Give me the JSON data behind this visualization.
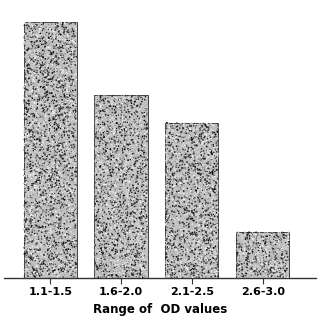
{
  "categories": [
    "1.1-1.5",
    "1.6-2.0",
    "2.1-2.5",
    "2.6-3.0"
  ],
  "values": [
    28,
    20,
    17,
    5
  ],
  "bar_color_base": "#c0c0c0",
  "xlabel": "Range of  OD values",
  "xlabel_fontsize": 8.5,
  "tick_fontsize": 8,
  "ylim": [
    0,
    30
  ],
  "bar_width": 0.75,
  "background_color": "#ffffff",
  "noise_seed": 7,
  "xlim_left": -0.65,
  "xlim_right": 3.75
}
